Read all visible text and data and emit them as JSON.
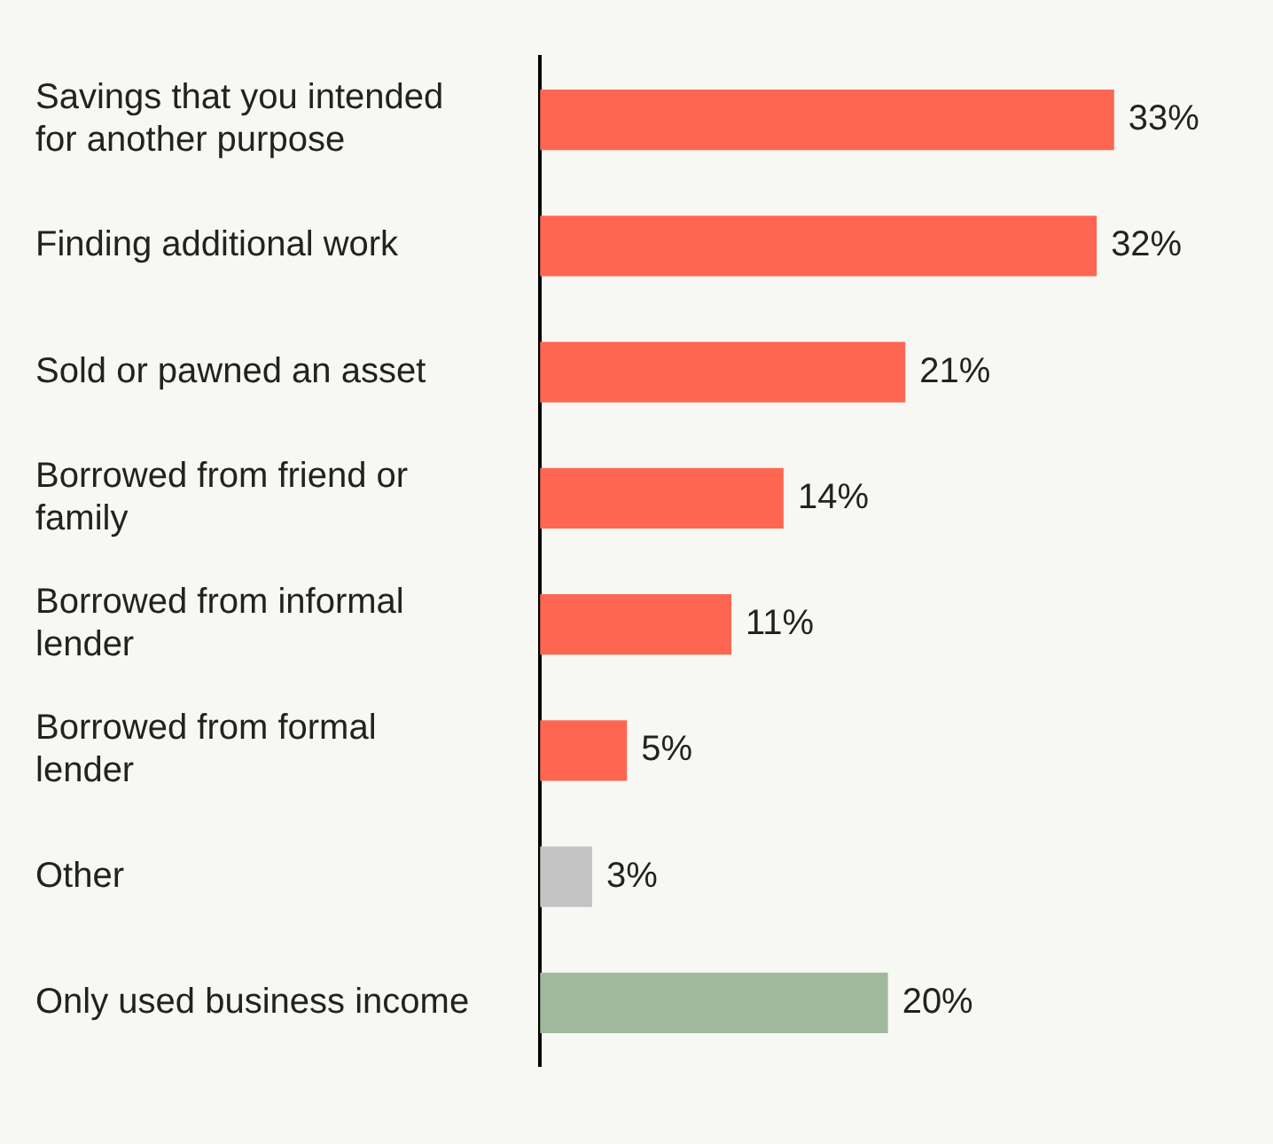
{
  "chart_data": {
    "type": "bar",
    "orientation": "horizontal",
    "categories": [
      "Savings that you intended for another purpose",
      "Finding additional work",
      "Sold or pawned an asset",
      "Borrowed from friend or family",
      "Borrowed from informal lender",
      "Borrowed from formal lender",
      "Other",
      "Only used business income"
    ],
    "values": [
      33,
      32,
      21,
      14,
      11,
      5,
      3,
      20
    ],
    "colors": [
      "#ff6651",
      "#ff6651",
      "#ff6651",
      "#ff6651",
      "#ff6651",
      "#ff6651",
      "#c4c4c4",
      "#a0b89c"
    ],
    "value_labels": [
      "33%",
      "32%",
      "21%",
      "14%",
      "11%",
      "5%",
      "3%",
      "20%"
    ],
    "grid": false,
    "legend": false
  }
}
